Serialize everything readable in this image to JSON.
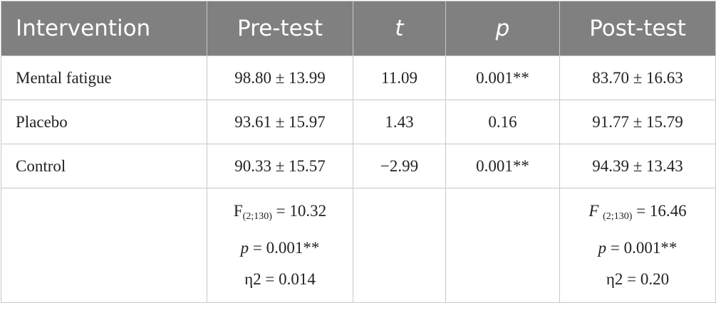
{
  "table": {
    "header": [
      "Intervention",
      "Pre-test",
      "t",
      "p",
      "Post-test"
    ],
    "rows": [
      [
        "Mental fatigue",
        "98.80 ± 13.99",
        "11.09",
        "0.001**",
        "83.70 ± 16.63"
      ],
      [
        "Placebo",
        "93.61 ± 15.97",
        "1.43",
        "0.16",
        "91.77 ± 15.79"
      ],
      [
        "Control",
        "90.33 ± 15.57",
        "−2.99",
        "0.001**",
        "94.39 ± 13.43"
      ]
    ],
    "summary": {
      "pre": {
        "f_symbol": "F",
        "f_df": "(2;130)",
        "f_value": " = 10.32",
        "p_symbol": "p",
        "p_value": " = 0.001**",
        "eta": "η2 = 0.014"
      },
      "post": {
        "f_symbol": "F ",
        "f_df": "(2;130)",
        "f_value": " = 16.46",
        "p_symbol": "p",
        "p_value": " = 0.001**",
        "eta": "η2 = 0.20"
      }
    }
  }
}
